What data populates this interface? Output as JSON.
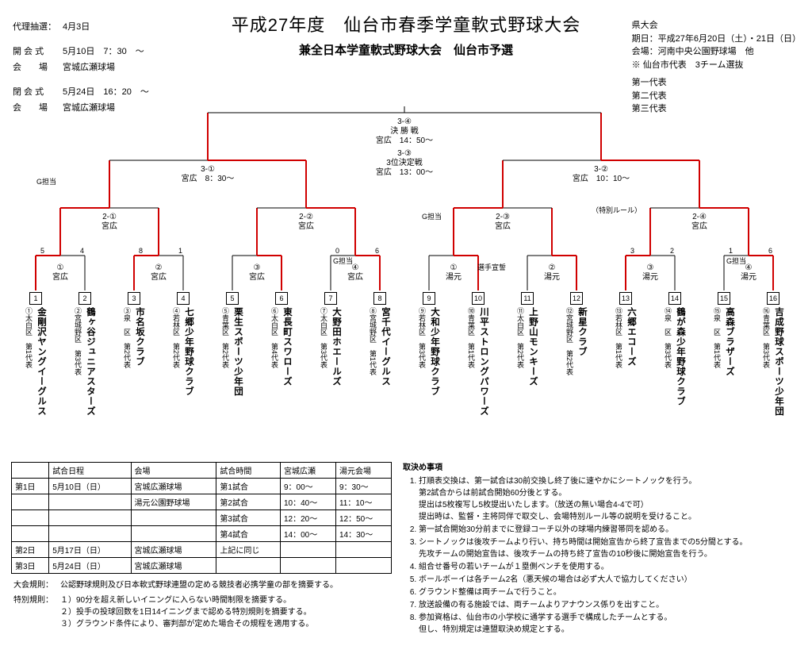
{
  "colors": {
    "line_black": "#000000",
    "line_red": "#d00000",
    "bg": "#ffffff"
  },
  "title": {
    "main": "平成27年度　仙台市春季学童軟式野球大会",
    "sub": "兼全日本学童軟式野球大会　仙台市予選"
  },
  "left_info": {
    "draw_label": "代理抽選：",
    "draw_date": "4月3日",
    "open_label": "開 会 式",
    "open_val": "5月10日　7：30　～",
    "venue_label": "会　　場",
    "venue_val": "宮城広瀬球場",
    "close_label": "閉 会 式",
    "close_val": "5月24日　16：20　～",
    "venue2_label": "会　　場",
    "venue2_val": "宮城広瀬球場"
  },
  "right_info": {
    "hd": "県大会",
    "l1": "期日：平成27年6月20日（土）・21日（日）",
    "l2": "会場：河南中央公園野球場　他",
    "l3": "※ 仙台市代表　3チーム選抜",
    "reps": [
      "第一代表",
      "第二代表",
      "第三代表"
    ]
  },
  "bracket": {
    "final": {
      "code": "3-④",
      "name": "決 勝 戦",
      "venue": "宮広　14：50～"
    },
    "third": {
      "code": "3-③",
      "name": "3位決定戦",
      "venue": "宮広　13：00～"
    },
    "semiL": {
      "code": "3-①",
      "venue": "宮広　8：30～"
    },
    "semiR": {
      "code": "3-②",
      "venue": "宮広　10：10～"
    },
    "q1": {
      "code": "2-①",
      "venue": "宮広"
    },
    "q2": {
      "code": "2-②",
      "venue": "宮広"
    },
    "q3": {
      "code": "2-③",
      "venue": "宮広"
    },
    "q4": {
      "code": "2-④",
      "venue": "宮広"
    },
    "g_label": "G担当",
    "special_rule": "（特別ルール）",
    "pledge": "選手宣誓",
    "r1": [
      {
        "num": "①",
        "venue": "宮広"
      },
      {
        "num": "②",
        "venue": "宮広"
      },
      {
        "num": "③",
        "venue": "宮広"
      },
      {
        "num": "④",
        "venue": "宮広",
        "g": true
      },
      {
        "num": "①",
        "venue": "湯元"
      },
      {
        "num": "②",
        "venue": "湯元"
      },
      {
        "num": "③",
        "venue": "湯元"
      },
      {
        "num": "④",
        "venue": "湯元",
        "g": true
      }
    ],
    "scores_r1": [
      [
        "5",
        "4"
      ],
      [
        "8",
        "1"
      ],
      [
        "",
        ""
      ],
      [
        "0",
        "6"
      ],
      [
        "",
        ""
      ],
      [
        "",
        ""
      ],
      [
        "3",
        "2"
      ],
      [
        "1",
        "6"
      ]
    ],
    "winners_r1": [
      0,
      0,
      1,
      1,
      1,
      1,
      0,
      1
    ],
    "winners_q": [
      0,
      1,
      0,
      1
    ],
    "winners_s": [
      1,
      1
    ]
  },
  "teams": [
    {
      "n": "1",
      "dist": "①太白区　第1代表",
      "name": "金剛沢ヤングイーグルス"
    },
    {
      "n": "2",
      "dist": "②宮城野区　第3代表",
      "name": "鶴ヶ谷ジュニアスターズ"
    },
    {
      "n": "3",
      "dist": "③泉　区　第2代表",
      "name": "市名坂クラブ"
    },
    {
      "n": "4",
      "dist": "④若林区　第2代表",
      "name": "七郷少年野球クラブ"
    },
    {
      "n": "5",
      "dist": "⑤青葉区　第2代表",
      "name": "栗生スポーツ少年団"
    },
    {
      "n": "6",
      "dist": "⑥太白区　第4代表",
      "name": "東長町スワローズ"
    },
    {
      "n": "7",
      "dist": "⑦太白区　第3代表",
      "name": "大野田ホエールズ"
    },
    {
      "n": "8",
      "dist": "⑧宮城野区　第1代表",
      "name": "宮千代イーグルス"
    },
    {
      "n": "9",
      "dist": "⑨若林区　第3代表",
      "name": "大和少年野球クラブ"
    },
    {
      "n": "10",
      "dist": "⑩青葉区　第1代表",
      "name": "川平ストロングパワーズ"
    },
    {
      "n": "11",
      "dist": "⑪太白区　第2代表",
      "name": "上野山モンキーズ"
    },
    {
      "n": "12",
      "dist": "⑫宮城野区　第2代表",
      "name": "新星クラブ"
    },
    {
      "n": "13",
      "dist": "⑬若林区　第1代表",
      "name": "六郷エコーズ"
    },
    {
      "n": "14",
      "dist": "⑭泉　区　第3代表",
      "name": "鶴が森少年野球クラブ"
    },
    {
      "n": "15",
      "dist": "⑮泉　区　第1代表",
      "name": "高森ブラザーズ"
    },
    {
      "n": "16",
      "dist": "⑯青葉区　第3代表",
      "name": "吉成野球スポーツ少年団"
    }
  ],
  "schedule": {
    "headers": [
      "",
      "試合日程",
      "会場",
      "試合時間",
      "宮城広瀬",
      "湯元会場"
    ],
    "rows": [
      [
        "第1日",
        "5月10日（日）",
        "宮城広瀬球場",
        "第1試合",
        "9：00～",
        "9：30～"
      ],
      [
        "",
        "",
        "湯元公園野球場",
        "第2試合",
        "10：40～",
        "11：10～"
      ],
      [
        "",
        "",
        "",
        "第3試合",
        "12：20～",
        "12：50～"
      ],
      [
        "",
        "",
        "",
        "第4試合",
        "14：00～",
        "14：30～"
      ],
      [
        "第2日",
        "5月17日（日）",
        "宮城広瀬球場",
        "上記に同じ",
        "",
        ""
      ],
      [
        "第3日",
        "5月24日（日）",
        "宮城広瀬球場",
        "",
        "",
        ""
      ]
    ]
  },
  "rules_left": {
    "a_label": "大会規則：",
    "a_text": "公認野球規則及び日本軟式野球連盟の定める競技者必携学童の部を摘要する。",
    "b_label": "特別規則：",
    "b_items": [
      "１）90分を超え新しいイニングに入らない時間制限を摘要する。",
      "２）投手の投球回数を1日14イニングまで認める特別規則を摘要する。",
      "３）グラウンド条件により、審判部が定めた場合その規程を適用する。"
    ]
  },
  "rules_right": {
    "hd": "取決め事項",
    "items": [
      "打順表交換は、第一試合は30前交換し終了後に速やかにシートノックを行う。\n第2試合からは前試合開始60分後とする。\n提出は5枚複写し5枚提出いたします。（放送の無い場合4-4で可）\n提出時は、監督・主将同伴で取交し、会場特別ルール等の説明を受けること。",
      "第一試合開始30分前までに登録コーチ以外の球場内練習帯同を認める。",
      "シートノックは後攻チームより行い、持ち時間は開始宣告から終了宣告までの5分間とする。\n先攻チームの開始宣告は、後攻チームの持ち終了宣告の10秒後に開始宣告を行う。",
      "組合せ番号の若いチームが１塁側ベンチを使用する。",
      "ボールボーイは各チーム2名（悪天候の場合は必ず大人で協力してください）",
      "グラウンド整備は両チームで行うこと。",
      "放送設備の有る施設では、両チームよりアナウンス係りを出すこと。",
      "参加資格は、仙台市の小学校に通学する選手で構成したチームとする。\n但し、特別規定は連盟取決め規定とする。"
    ]
  }
}
